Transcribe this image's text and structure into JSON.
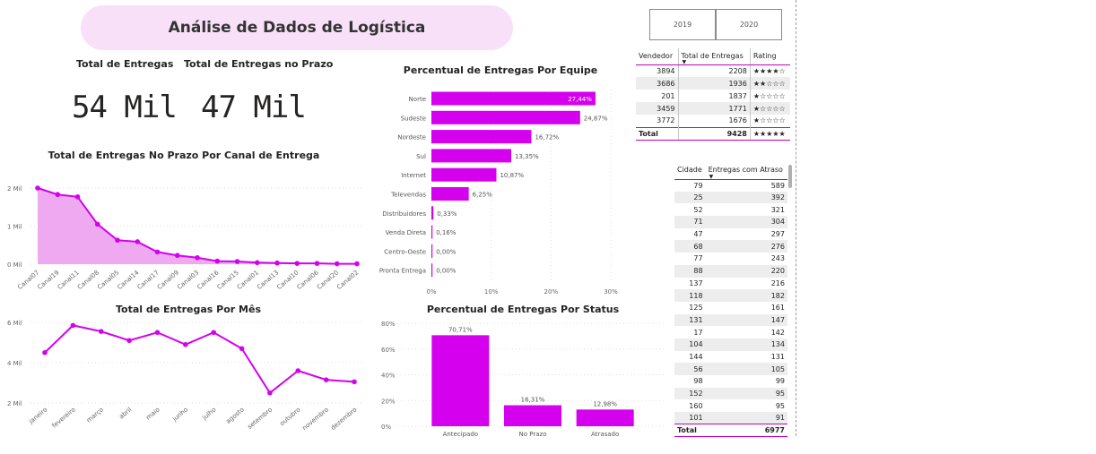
{
  "header": {
    "title": "Análise de Dados de Logística"
  },
  "kpis": {
    "total_label": "Total de Entregas",
    "total_value": "54 Mil",
    "prazo_label": "Total de Entregas no Prazo",
    "prazo_value": "47 Mil"
  },
  "slicer": {
    "options": [
      "2019",
      "2020"
    ]
  },
  "colors": {
    "accent": "#d400ee",
    "area_fill": "#ea94ee",
    "banner": "#f8e0f8",
    "grid": "#dddddd"
  },
  "chart_data": [
    {
      "id": "canal",
      "type": "area",
      "title": "Total de Entregas No Prazo Por Canal de Entrega",
      "categories": [
        "Canal07",
        "Canal19",
        "Canal11",
        "Canal08",
        "Canal05",
        "Canal14",
        "Canal17",
        "Canal09",
        "Canal03",
        "Canal16",
        "Canal15",
        "Canal01",
        "Canal13",
        "Canal10",
        "Canal06",
        "Canal20",
        "Canal02"
      ],
      "values": [
        2.0,
        1.83,
        1.77,
        1.05,
        0.63,
        0.59,
        0.32,
        0.23,
        0.17,
        0.08,
        0.07,
        0.04,
        0.03,
        0.02,
        0.02,
        0.01,
        0.01
      ],
      "yticks": [
        "0 Mil",
        "1 Mil",
        "2 Mil"
      ],
      "ylim": [
        0,
        2
      ]
    },
    {
      "id": "mes",
      "type": "line",
      "title": "Total de Entregas Por Mês",
      "categories": [
        "janeiro",
        "fevereiro",
        "março",
        "abril",
        "maio",
        "junho",
        "julho",
        "agosto",
        "setembro",
        "outubro",
        "novembro",
        "dezembro"
      ],
      "values": [
        4.5,
        5.85,
        5.55,
        5.1,
        5.5,
        4.9,
        5.5,
        4.7,
        2.5,
        3.6,
        3.15,
        3.05
      ],
      "yticks": [
        "2 Mil",
        "4 Mil",
        "6 Mil"
      ],
      "ylim": [
        2,
        6
      ]
    },
    {
      "id": "equipe",
      "type": "bar",
      "orientation": "horizontal",
      "title": "Percentual de Entregas Por Equipe",
      "categories": [
        "Norte",
        "Sudeste",
        "Nordeste",
        "Sul",
        "Internet",
        "Televendas",
        "Distribuidores",
        "Venda Direta",
        "Centro-Oeste",
        "Pronta Entrega"
      ],
      "values": [
        27.44,
        24.87,
        16.72,
        13.35,
        10.87,
        6.25,
        0.33,
        0.16,
        0.0,
        0.0
      ],
      "labels": [
        "27,44%",
        "24,87%",
        "16,72%",
        "13,35%",
        "10,87%",
        "6,25%",
        "0,33%",
        "0,16%",
        "0,00%",
        "0,00%"
      ],
      "xticks": [
        "0%",
        "10%",
        "20%",
        "30%"
      ],
      "xlim": [
        0,
        30
      ]
    },
    {
      "id": "status",
      "type": "bar",
      "title": "Percentual de Entregas Por Status",
      "categories": [
        "Antecipado",
        "No Prazo",
        "Atrasado"
      ],
      "values": [
        70.71,
        16.31,
        12.98
      ],
      "labels": [
        "70,71%",
        "16,31%",
        "12,98%"
      ],
      "yticks": [
        "0%",
        "20%",
        "40%",
        "60%",
        "80%"
      ],
      "ylim": [
        0,
        80
      ]
    }
  ],
  "vendedor_table": {
    "headers": [
      "Vendedor",
      "Total de Entregas",
      "Rating"
    ],
    "rows": [
      [
        "3894",
        "2208",
        "★★★★☆"
      ],
      [
        "3686",
        "1936",
        "★★☆☆☆"
      ],
      [
        "201",
        "1837",
        "★☆☆☆☆"
      ],
      [
        "3459",
        "1771",
        "★☆☆☆☆"
      ],
      [
        "3772",
        "1676",
        "★☆☆☆☆"
      ]
    ],
    "total": [
      "Total",
      "9428",
      "★★★★★"
    ]
  },
  "cidade_table": {
    "headers": [
      "Cidade",
      "Entregas com Atraso"
    ],
    "rows": [
      [
        "79",
        "589"
      ],
      [
        "25",
        "392"
      ],
      [
        "52",
        "321"
      ],
      [
        "71",
        "304"
      ],
      [
        "47",
        "297"
      ],
      [
        "68",
        "276"
      ],
      [
        "77",
        "243"
      ],
      [
        "88",
        "220"
      ],
      [
        "137",
        "216"
      ],
      [
        "118",
        "182"
      ],
      [
        "125",
        "161"
      ],
      [
        "131",
        "147"
      ],
      [
        "17",
        "142"
      ],
      [
        "104",
        "134"
      ],
      [
        "144",
        "131"
      ],
      [
        "56",
        "105"
      ],
      [
        "98",
        "99"
      ],
      [
        "152",
        "95"
      ],
      [
        "160",
        "95"
      ],
      [
        "101",
        "91"
      ]
    ],
    "total": [
      "Total",
      "6977"
    ]
  }
}
